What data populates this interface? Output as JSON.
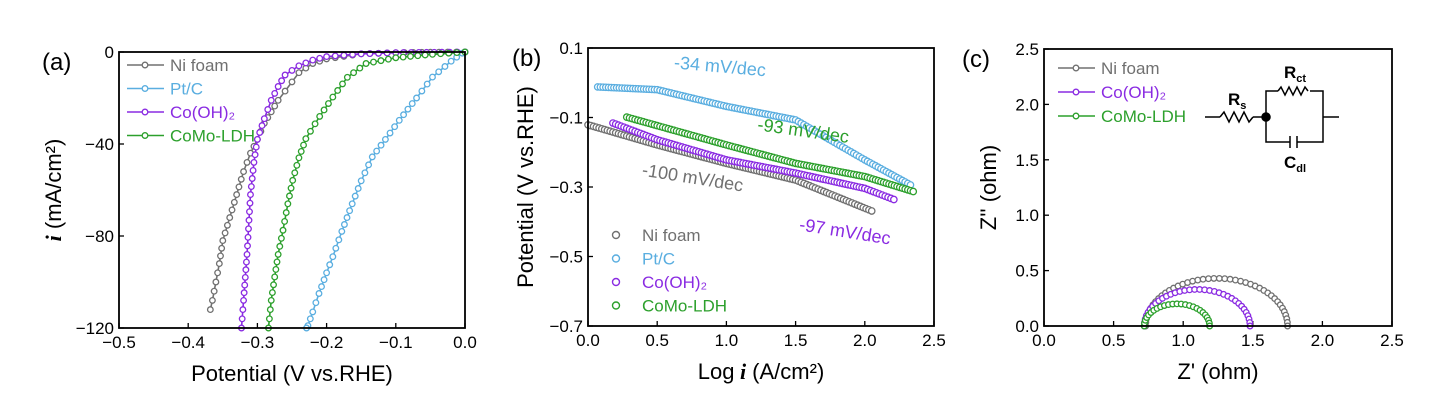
{
  "colors": {
    "Ni foam": "#707070",
    "Pt/C": "#5aaee0",
    "Co(OH)₂": "#8a2be2",
    "CoMo-LDH": "#2ca02c",
    "axis": "#000000"
  },
  "chart_data": [
    {
      "panel_label": "(a)",
      "type": "line",
      "xlabel": "Potential (V vs.RHE)",
      "ylabel": "i (mA/cm²)",
      "ylabel_italic": "i",
      "xlim": [
        -0.5,
        0.0
      ],
      "ylim": [
        -120,
        0
      ],
      "xticks": [
        "−0.5",
        "−0.4",
        "−0.3",
        "−0.2",
        "−0.1",
        "0.0"
      ],
      "xtick_values": [
        -0.5,
        -0.4,
        -0.3,
        -0.2,
        -0.1,
        0.0
      ],
      "yticks": [
        "0",
        "−40",
        "−80",
        "−120"
      ],
      "ytick_values": [
        0,
        -40,
        -80,
        -120
      ],
      "legend_position": "top-left",
      "markers": "open-circle-with-line",
      "series": [
        {
          "name": "Ni foam",
          "x": [
            0,
            -0.05,
            -0.1,
            -0.15,
            -0.2,
            -0.22,
            -0.24,
            -0.25,
            -0.26,
            -0.27,
            -0.28,
            -0.29,
            -0.3,
            -0.31,
            -0.32,
            -0.33,
            -0.34,
            -0.35,
            -0.355,
            -0.36,
            -0.365,
            -0.368
          ],
          "y": [
            0,
            -0.1,
            -0.3,
            -0.8,
            -3,
            -5,
            -9,
            -13,
            -17,
            -21,
            -26,
            -31,
            -38,
            -44,
            -52,
            -62,
            -72,
            -82,
            -92,
            -100,
            -108,
            -112
          ]
        },
        {
          "name": "Pt/C",
          "x": [
            0,
            -0.004,
            -0.02,
            -0.047,
            -0.07,
            -0.095,
            -0.115,
            -0.134,
            -0.15,
            -0.163,
            -0.178,
            -0.191,
            -0.2,
            -0.211,
            -0.22,
            -0.227,
            -0.229
          ],
          "y": [
            0,
            -0.5,
            -4,
            -10.9,
            -20,
            -29.7,
            -38,
            -45.6,
            -56,
            -66,
            -78,
            -89,
            -96,
            -105,
            -113,
            -119,
            -120
          ]
        },
        {
          "name": "Co(OH)₂",
          "x": [
            0,
            -0.1,
            -0.15,
            -0.2,
            -0.22,
            -0.24,
            -0.25,
            -0.26,
            -0.27,
            -0.28,
            -0.29,
            -0.3,
            -0.305,
            -0.31,
            -0.315,
            -0.32,
            -0.323
          ],
          "y": [
            0,
            -0.3,
            -0.8,
            -2,
            -3.5,
            -6,
            -8,
            -10,
            -15,
            -21,
            -29,
            -38,
            -48,
            -62,
            -88,
            -108,
            -120
          ]
        },
        {
          "name": "CoMo-LDH",
          "x": [
            0,
            -0.047,
            -0.1,
            -0.143,
            -0.17,
            -0.191,
            -0.21,
            -0.23,
            -0.24,
            -0.249,
            -0.256,
            -0.263,
            -0.27,
            -0.275,
            -0.28,
            -0.284
          ],
          "y": [
            0,
            -1,
            -2.5,
            -5,
            -11,
            -19.6,
            -28,
            -37.7,
            -46,
            -55.8,
            -66,
            -77.5,
            -88,
            -97.8,
            -108,
            -120
          ]
        }
      ]
    },
    {
      "panel_label": "(b)",
      "type": "scatter",
      "xlabel": "Log i (A/cm²)",
      "xlabel_italic": "i",
      "ylabel": "Potential (V vs.RHE)",
      "xlim": [
        0,
        2.5
      ],
      "ylim": [
        -0.7,
        0.1
      ],
      "xticks": [
        "0.0",
        "0.5",
        "1.0",
        "1.5",
        "2.0",
        "2.5"
      ],
      "xtick_values": [
        0,
        0.5,
        1.0,
        1.5,
        2.0,
        2.5
      ],
      "yticks": [
        "0.1",
        "−0.1",
        "−0.3",
        "−0.5",
        "−0.7"
      ],
      "ytick_values": [
        0.1,
        -0.1,
        -0.3,
        -0.5,
        -0.7
      ],
      "legend_position": "bottom-left",
      "markers": "open-circle",
      "series": [
        {
          "name": "Ni foam",
          "x": [
            0.0,
            0.5,
            1.0,
            1.5,
            2.05
          ],
          "y": [
            -0.121,
            -0.179,
            -0.232,
            -0.28,
            -0.369
          ]
        },
        {
          "name": "Pt/C",
          "x": [
            0.07,
            0.5,
            1.0,
            1.5,
            2.0,
            2.33
          ],
          "y": [
            -0.012,
            -0.02,
            -0.068,
            -0.107,
            -0.222,
            -0.294
          ]
        },
        {
          "name": "Co(OH)₂",
          "x": [
            0.18,
            0.5,
            1.0,
            1.5,
            2.0,
            2.21
          ],
          "y": [
            -0.116,
            -0.164,
            -0.222,
            -0.26,
            -0.304,
            -0.336
          ]
        },
        {
          "name": "CoMo-LDH",
          "x": [
            0.28,
            1.0,
            1.5,
            2.0,
            2.35
          ],
          "y": [
            -0.099,
            -0.179,
            -0.232,
            -0.27,
            -0.313
          ]
        }
      ],
      "annotations": [
        {
          "text": "-34 mV/dec",
          "series": "Pt/C",
          "x": 0.95,
          "y": 0.03,
          "angle": 5
        },
        {
          "text": "-93 mV/dec",
          "series": "CoMo-LDH",
          "x": 1.55,
          "y": -0.155,
          "angle": 8
        },
        {
          "text": "-100 mV/dec",
          "series": "Ni foam",
          "x": 0.75,
          "y": -0.29,
          "angle": 9
        },
        {
          "text": "-97 mV/dec",
          "series": "Co(OH)₂",
          "x": 1.85,
          "y": -0.445,
          "angle": 9
        }
      ]
    },
    {
      "panel_label": "(c)",
      "type": "line",
      "xlabel": "Z' (ohm)",
      "ylabel": "Z'' (ohm)",
      "xlim": [
        0,
        2.5
      ],
      "ylim": [
        0,
        2.5
      ],
      "xticks": [
        "0.0",
        "0.5",
        "1.0",
        "1.5",
        "2.0",
        "2.5"
      ],
      "xtick_values": [
        0,
        0.5,
        1.0,
        1.5,
        2.0,
        2.5
      ],
      "yticks": [
        "0.0",
        "0.5",
        "1.0",
        "1.5",
        "2.0",
        "2.5"
      ],
      "ytick_values": [
        0,
        0.5,
        1.0,
        1.5,
        2.0,
        2.5
      ],
      "legend_position": "top-left",
      "markers": "open-circle-with-line",
      "series": [
        {
          "name": "Ni foam",
          "x_start": 0.73,
          "x_end": 1.75,
          "peak": 0.43
        },
        {
          "name": "Co(OH)₂",
          "x_start": 0.72,
          "x_end": 1.48,
          "peak": 0.33
        },
        {
          "name": "CoMo-LDH",
          "x_start": 0.72,
          "x_end": 1.19,
          "peak": 0.2
        }
      ],
      "inset_circuit": {
        "rs": "R",
        "rs_sub": "s",
        "rct": "R",
        "rct_sub": "ct",
        "cdl": "C",
        "cdl_sub": "dl"
      }
    }
  ]
}
